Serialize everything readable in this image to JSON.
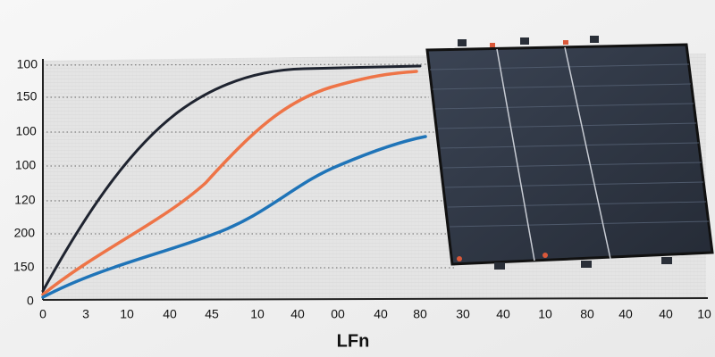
{
  "photo": {
    "y_labels": [
      "100",
      "150",
      "100",
      "100",
      "120",
      "200",
      "150",
      "0"
    ],
    "x_labels": [
      "0",
      "3",
      "10",
      "40",
      "45",
      "10",
      "40",
      "00",
      "40",
      "80",
      "30",
      "40",
      "10",
      "80",
      "40",
      "40",
      "10"
    ],
    "x_axis_title": "LFn"
  }
}
